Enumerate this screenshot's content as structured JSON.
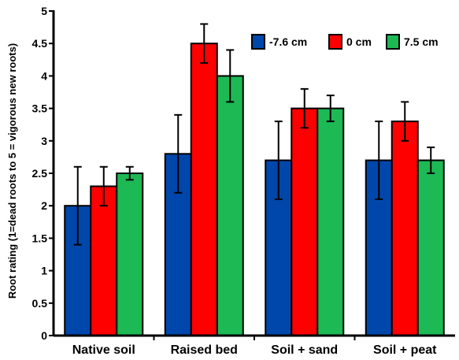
{
  "chart_data": {
    "type": "bar",
    "title": "",
    "xlabel": "",
    "ylabel": "Root rating (1=dead roots to 5 = vigorous new roots)",
    "ylim": [
      0,
      5
    ],
    "yticks": [
      "0",
      "0.5",
      "1",
      "1.5",
      "2",
      "2.5",
      "3",
      "3.5",
      "4",
      "4.5",
      "5"
    ],
    "ytick_values": [
      0,
      0.5,
      1,
      1.5,
      2,
      2.5,
      3,
      3.5,
      4,
      4.5,
      5
    ],
    "categories": [
      "Native soil",
      "Raised bed",
      "Soil + sand",
      "Soil + peat"
    ],
    "series": [
      {
        "name": "-7.6 cm",
        "color": "#0047AB",
        "values": [
          2.0,
          2.8,
          2.7,
          2.7
        ],
        "error": [
          0.6,
          0.6,
          0.6,
          0.6
        ]
      },
      {
        "name": "0 cm",
        "color": "#FF0000",
        "values": [
          2.3,
          4.5,
          3.5,
          3.3
        ],
        "error": [
          0.3,
          0.3,
          0.3,
          0.3
        ]
      },
      {
        "name": "7.5 cm",
        "color": "#1DB954",
        "values": [
          2.5,
          4.0,
          3.5,
          2.7
        ],
        "error": [
          0.1,
          0.4,
          0.2,
          0.2
        ]
      }
    ],
    "grid": false,
    "legend_position": "top-right",
    "error_bars": true
  }
}
